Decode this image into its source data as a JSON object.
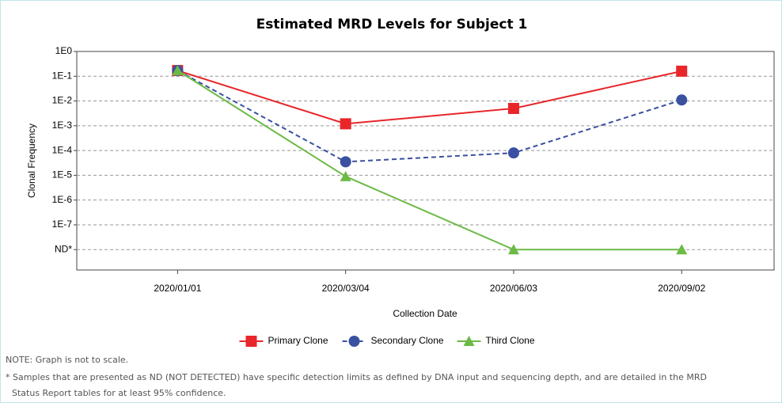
{
  "chart_data": {
    "type": "line",
    "title": "Estimated MRD Levels for Subject 1",
    "xlabel": "Collection Date",
    "ylabel": "Clonal Frequency",
    "categories": [
      "2020/01/01",
      "2020/03/04",
      "2020/06/03",
      "2020/09/02"
    ],
    "log_scale": true,
    "grid": true,
    "legend": "bottom",
    "ylim": [
      1.5e-09,
      1
    ],
    "yticks": [
      {
        "value": 1,
        "label": "1E0"
      },
      {
        "value": 0.1,
        "label": "1E-1"
      },
      {
        "value": 0.01,
        "label": "1E-2"
      },
      {
        "value": 0.001,
        "label": "1E-3"
      },
      {
        "value": 0.0001,
        "label": "1E-4"
      },
      {
        "value": 1e-05,
        "label": "1E-5"
      },
      {
        "value": 1e-06,
        "label": "1E-6"
      },
      {
        "value": 1e-07,
        "label": "1E-7"
      },
      {
        "value": 1e-08,
        "label": "ND*"
      }
    ],
    "series": [
      {
        "name": "Primary Clone",
        "color": "#e8262a",
        "marker": "square",
        "dashed": false,
        "values": [
          0.17,
          0.0012,
          0.005,
          0.16
        ]
      },
      {
        "name": "Secondary Clone",
        "color": "#3a50a0",
        "marker": "circle",
        "dashed": true,
        "values": [
          0.17,
          3.5e-05,
          8e-05,
          0.011
        ]
      },
      {
        "name": "Third Clone",
        "color": "#6cba45",
        "marker": "triangle",
        "dashed": false,
        "values": [
          0.17,
          9e-06,
          1e-08,
          1e-08
        ]
      }
    ]
  },
  "notes": [
    "NOTE: Graph is not to scale.",
    "* Samples that are presented as ND (NOT DETECTED) have specific detection limits as defined by DNA input and sequencing depth, and are detailed in the MRD",
    "Status Report tables for at least 95% confidence."
  ]
}
